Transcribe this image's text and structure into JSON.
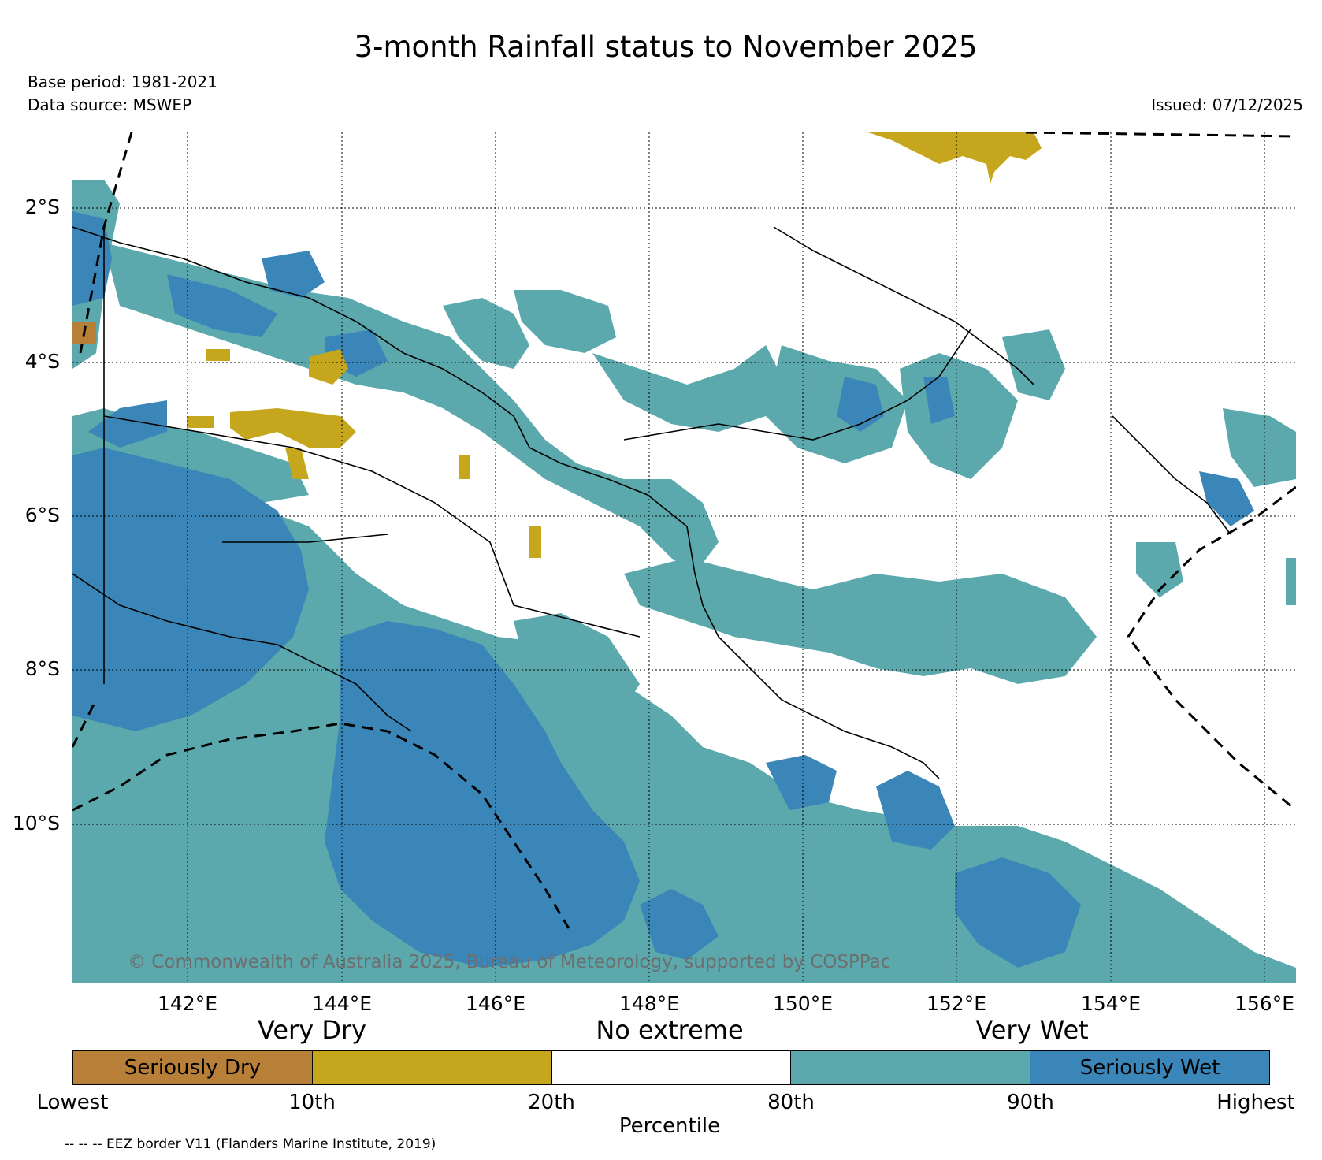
{
  "title": "3-month Rainfall status to November 2025",
  "base_period": "Base period: 1981-2021",
  "data_source": "Data source: MSWEP",
  "issued": "Issued: 07/12/2025",
  "copyright": "© Commonwealth of Australia 2025, Bureau of Meteorology, supported by COSPPac",
  "map": {
    "lat_labels": [
      "2°S",
      "4°S",
      "6°S",
      "8°S",
      "10°S"
    ],
    "lon_labels": [
      "142°E",
      "144°E",
      "146°E",
      "148°E",
      "150°E",
      "152°E",
      "154°E",
      "156°E"
    ]
  },
  "legend": {
    "categories": [
      "Very Dry",
      "No extreme",
      "Very Wet"
    ],
    "segments": [
      {
        "label": "Seriously Dry",
        "color": "#b77f38"
      },
      {
        "label": "",
        "color": "#c5a61c"
      },
      {
        "label": "",
        "color": "#ffffff"
      },
      {
        "label": "",
        "color": "#5ba8ad"
      },
      {
        "label": "Seriously Wet",
        "color": "#3a86b8"
      }
    ],
    "percentile_labels": [
      "Lowest",
      "10th",
      "20th",
      "80th",
      "90th",
      "Highest"
    ],
    "percentile_title": "Percentile"
  },
  "eez_note": "-- -- -- EEZ border V11 (Flanders Marine Institute, 2019)"
}
